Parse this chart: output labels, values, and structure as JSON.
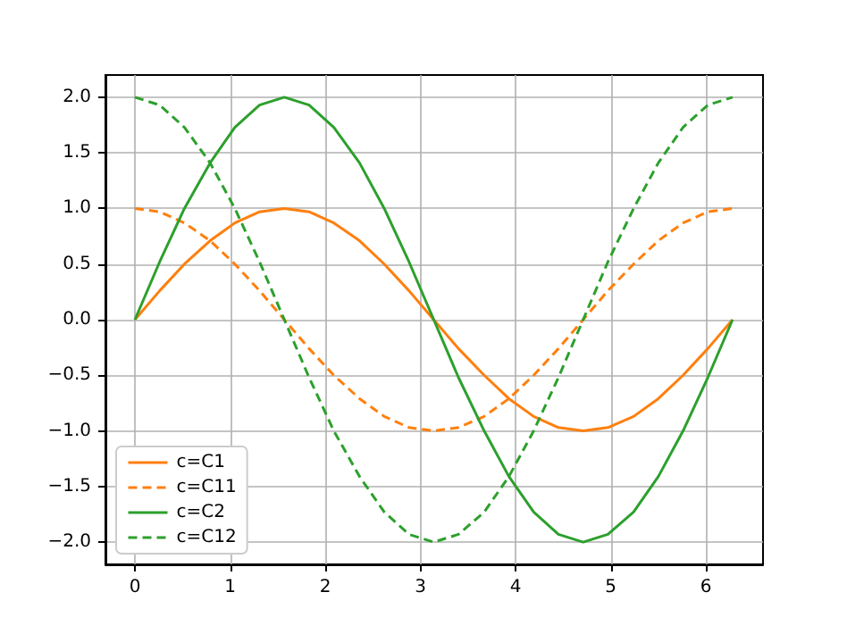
{
  "chart_data": {
    "type": "line",
    "x": [
      0,
      0.26,
      0.52,
      0.79,
      1.05,
      1.31,
      1.57,
      1.83,
      2.09,
      2.36,
      2.62,
      2.88,
      3.14,
      3.4,
      3.67,
      3.93,
      4.19,
      4.45,
      4.71,
      4.97,
      5.24,
      5.5,
      5.76,
      6.02,
      6.28
    ],
    "series": [
      {
        "name": "c=C1",
        "color": "#ff7f0e",
        "values": [
          0,
          0.26,
          0.5,
          0.71,
          0.87,
          0.97,
          1,
          0.97,
          0.87,
          0.71,
          0.5,
          0.26,
          0,
          -0.26,
          -0.5,
          -0.71,
          -0.87,
          -0.97,
          -1,
          -0.97,
          -0.87,
          -0.71,
          -0.5,
          -0.26,
          0
        ]
      },
      {
        "name": "c=C11",
        "color": "#ff7f0e",
        "line_style": "dashed",
        "values": [
          1,
          0.97,
          0.87,
          0.71,
          0.5,
          0.26,
          0,
          -0.26,
          -0.5,
          -0.71,
          -0.87,
          -0.97,
          -1,
          -0.97,
          -0.87,
          -0.71,
          -0.5,
          -0.26,
          0,
          0.26,
          0.5,
          0.71,
          0.87,
          0.97,
          1
        ]
      },
      {
        "name": "c=C2",
        "color": "#2ca02c",
        "values": [
          0,
          0.52,
          1,
          1.41,
          1.73,
          1.93,
          2,
          1.93,
          1.73,
          1.41,
          1,
          0.52,
          0,
          -0.52,
          -1,
          -1.41,
          -1.73,
          -1.93,
          -2,
          -1.93,
          -1.73,
          -1.41,
          -1,
          -0.52,
          0
        ]
      },
      {
        "name": "c=C12",
        "color": "#2ca02c",
        "line_style": "dashed",
        "values": [
          2,
          1.93,
          1.73,
          1.41,
          1,
          0.52,
          0,
          -0.52,
          -1,
          -1.41,
          -1.73,
          -1.93,
          -2,
          -1.93,
          -1.73,
          -1.41,
          -1,
          -0.52,
          0,
          0.52,
          1,
          1.41,
          1.73,
          1.93,
          2
        ]
      }
    ],
    "xlim": [
      -0.31,
      6.6
    ],
    "ylim": [
      -2.2,
      2.2
    ],
    "xticks": [
      0,
      1,
      2,
      3,
      4,
      5,
      6
    ],
    "yticks": [
      {
        "value": -2,
        "label": "−2.0"
      },
      {
        "value": -1.5,
        "label": "−1.5"
      },
      {
        "value": -1,
        "label": "−1.0"
      },
      {
        "value": -0.5,
        "label": "−0.5"
      },
      {
        "value": 0,
        "label": "0.0"
      },
      {
        "value": 0.5,
        "label": "0.5"
      },
      {
        "value": 1,
        "label": "1.0"
      },
      {
        "value": 1.5,
        "label": "1.5"
      },
      {
        "value": 2,
        "label": "2.0"
      }
    ],
    "grid": true,
    "legend": "bottom left",
    "line_style": "solid"
  }
}
